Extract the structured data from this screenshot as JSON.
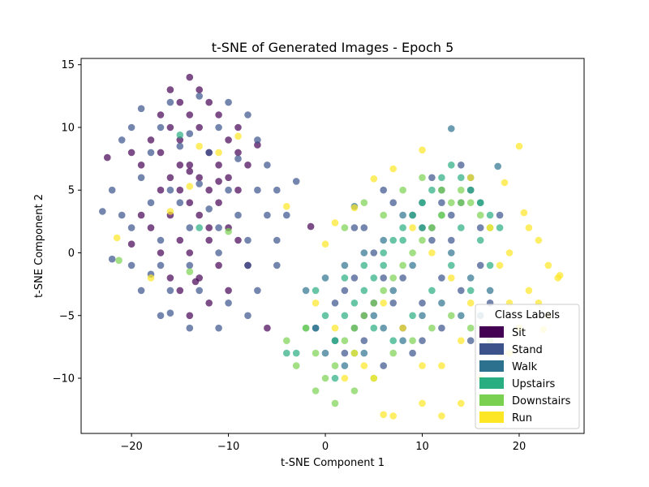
{
  "chart_data": {
    "type": "scatter",
    "title": "t-SNE of Generated Images - Epoch 5",
    "xlabel": "t-SNE Component 1",
    "ylabel": "t-SNE Component 2",
    "xlim": [
      -25.2,
      26.7
    ],
    "ylim": [
      -14.4,
      15.5
    ],
    "xticks": [
      -20,
      -10,
      0,
      10,
      20
    ],
    "yticks": [
      -10,
      -5,
      0,
      5,
      10,
      15
    ],
    "grid": false,
    "legend": {
      "title": "Class Labels",
      "placement": "lower-right"
    },
    "series": [
      {
        "name": "Sit",
        "color": "#440154",
        "points": [
          [
            -14,
            14
          ],
          [
            -16,
            13
          ],
          [
            -13,
            13
          ],
          [
            -15,
            12
          ],
          [
            -12,
            12
          ],
          [
            -17,
            11
          ],
          [
            -14,
            11
          ],
          [
            -11,
            11
          ],
          [
            -9,
            10
          ],
          [
            -16,
            10
          ],
          [
            -13,
            10
          ],
          [
            -10,
            9
          ],
          [
            -18,
            9
          ],
          [
            -15,
            9
          ],
          [
            -12,
            8
          ],
          [
            -9,
            8
          ],
          [
            -20,
            8
          ],
          [
            -17,
            8
          ],
          [
            -14,
            7
          ],
          [
            -11,
            7
          ],
          [
            -8,
            7
          ],
          [
            -19,
            7
          ],
          [
            -16,
            6
          ],
          [
            -13,
            6
          ],
          [
            -10,
            6
          ],
          [
            -15,
            5
          ],
          [
            -12,
            5
          ],
          [
            -9,
            5
          ],
          [
            -17,
            5
          ],
          [
            -14,
            4
          ],
          [
            -11,
            4
          ],
          [
            -19,
            3
          ],
          [
            -16,
            3
          ],
          [
            -13,
            3
          ],
          [
            -10,
            2
          ],
          [
            -18,
            2
          ],
          [
            -15,
            1
          ],
          [
            -12,
            1
          ],
          [
            -9,
            1
          ],
          [
            -17,
            0
          ],
          [
            -14,
            0
          ],
          [
            -11,
            -1
          ],
          [
            -8,
            -1
          ],
          [
            -16,
            -2
          ],
          [
            -13,
            -2
          ],
          [
            -10,
            -3
          ],
          [
            -15,
            -3
          ],
          [
            -12,
            -4
          ],
          [
            -14,
            -5
          ],
          [
            -22.5,
            7.6
          ],
          [
            -7,
            8.6
          ],
          [
            -13.4,
            -2.3
          ],
          [
            -1.5,
            2.1
          ],
          [
            -6,
            -6
          ],
          [
            -11,
            5.7
          ],
          [
            -14,
            6.5
          ],
          [
            -12,
            2
          ],
          [
            -15,
            7
          ],
          [
            -20,
            0.7
          ]
        ]
      },
      {
        "name": "Stand",
        "color": "#3b528b",
        "points": [
          [
            -19,
            11.5
          ],
          [
            -16,
            12
          ],
          [
            -13,
            12.5
          ],
          [
            -10,
            12
          ],
          [
            -8,
            11
          ],
          [
            -20,
            10
          ],
          [
            -17,
            10
          ],
          [
            -14,
            9.5
          ],
          [
            -11,
            10
          ],
          [
            -7,
            9
          ],
          [
            -21,
            9
          ],
          [
            -18,
            8
          ],
          [
            -15,
            8.5
          ],
          [
            -12,
            8
          ],
          [
            -9,
            7.5
          ],
          [
            -6,
            7
          ],
          [
            -22,
            5
          ],
          [
            -19,
            6
          ],
          [
            -16,
            5
          ],
          [
            -13,
            5.5
          ],
          [
            -10,
            5
          ],
          [
            -7,
            5
          ],
          [
            -5,
            5
          ],
          [
            -21,
            3
          ],
          [
            -18,
            4
          ],
          [
            -15,
            4
          ],
          [
            -12,
            3.5
          ],
          [
            -9,
            3
          ],
          [
            -6,
            3
          ],
          [
            -4,
            3
          ],
          [
            -20,
            2
          ],
          [
            -17,
            1
          ],
          [
            -14,
            2
          ],
          [
            -11,
            2
          ],
          [
            -8,
            1
          ],
          [
            -5,
            1
          ],
          [
            -20,
            -1
          ],
          [
            -17,
            -1
          ],
          [
            -14,
            -1
          ],
          [
            -11,
            0
          ],
          [
            -8,
            -1
          ],
          [
            -5,
            -1
          ],
          [
            -19,
            -3
          ],
          [
            -16,
            -3
          ],
          [
            -13,
            -3
          ],
          [
            -10,
            -4
          ],
          [
            -7,
            -3
          ],
          [
            -17,
            -5
          ],
          [
            -14,
            -6
          ],
          [
            -11,
            -6
          ],
          [
            -8,
            -5
          ],
          [
            -3,
            5.7
          ],
          [
            -23,
            3.3
          ],
          [
            -22,
            -0.5
          ],
          [
            -18,
            -1.7
          ],
          [
            -16,
            -4.8
          ],
          [
            3,
            2
          ],
          [
            5,
            0
          ],
          [
            8,
            -2
          ],
          [
            10,
            -4
          ],
          [
            12,
            -6
          ],
          [
            14,
            -3
          ],
          [
            16,
            -1
          ],
          [
            7,
            4
          ],
          [
            11,
            1
          ],
          [
            13,
            3
          ],
          [
            15,
            5
          ],
          [
            9,
            -8
          ],
          [
            6,
            -9
          ],
          [
            4,
            -5
          ],
          [
            2,
            -3
          ],
          [
            17,
            -4
          ],
          [
            18,
            3
          ],
          [
            14,
            7
          ],
          [
            11,
            6
          ],
          [
            9,
            3
          ],
          [
            6,
            5
          ],
          [
            4,
            2
          ],
          [
            8,
            -6
          ],
          [
            12,
            -2
          ],
          [
            15,
            -7
          ],
          [
            6,
            -2
          ],
          [
            10,
            -7
          ],
          [
            13,
            1
          ],
          [
            16,
            2
          ],
          [
            5,
            -4
          ],
          [
            7,
            -4
          ],
          [
            3,
            -2
          ],
          [
            1,
            -4
          ],
          [
            4,
            -7
          ],
          [
            2,
            -8
          ],
          [
            10,
            2
          ],
          [
            12,
            4
          ]
        ]
      },
      {
        "name": "Walk",
        "color": "#2c728e",
        "points": [
          [
            13,
            9.9
          ],
          [
            17.8,
            6.9
          ],
          [
            15,
            6
          ],
          [
            12,
            5
          ],
          [
            10,
            4
          ],
          [
            8,
            3
          ],
          [
            6,
            1
          ],
          [
            4,
            0
          ],
          [
            2,
            -1
          ],
          [
            0,
            -2
          ],
          [
            -2,
            -3
          ],
          [
            11,
            2
          ],
          [
            13,
            0
          ],
          [
            15,
            -2
          ],
          [
            17,
            -3
          ],
          [
            9,
            -1
          ],
          [
            7,
            -3
          ],
          [
            5,
            -5
          ],
          [
            3,
            -6
          ],
          [
            1,
            -7
          ],
          [
            14,
            4
          ],
          [
            16,
            4
          ],
          [
            12,
            -4
          ],
          [
            10,
            -5
          ],
          [
            8,
            -7
          ],
          [
            6,
            -6
          ],
          [
            4,
            -8
          ],
          [
            2,
            -9
          ],
          [
            0,
            -8
          ],
          [
            -1,
            -6
          ],
          [
            16,
            -5
          ],
          [
            14,
            -5
          ],
          [
            3,
            3.7
          ],
          [
            -1,
            -6
          ]
        ]
      },
      {
        "name": "Upstairs",
        "color": "#28ae80",
        "points": [
          [
            -1,
            -3
          ],
          [
            0,
            -5
          ],
          [
            -2,
            -6
          ],
          [
            -3,
            -8
          ],
          [
            1,
            -7
          ],
          [
            2,
            -5
          ],
          [
            3,
            -4
          ],
          [
            4,
            -3
          ],
          [
            5,
            -2
          ],
          [
            6,
            -1
          ],
          [
            7,
            1
          ],
          [
            8,
            2
          ],
          [
            9,
            3
          ],
          [
            10,
            4
          ],
          [
            11,
            5
          ],
          [
            12,
            6
          ],
          [
            13,
            7
          ],
          [
            14,
            6
          ],
          [
            15,
            5
          ],
          [
            16,
            4
          ],
          [
            17,
            3
          ],
          [
            18,
            2
          ],
          [
            2,
            -2
          ],
          [
            4,
            -1
          ],
          [
            6,
            0
          ],
          [
            8,
            1
          ],
          [
            10,
            2
          ],
          [
            12,
            3
          ],
          [
            14,
            2
          ],
          [
            16,
            1
          ],
          [
            -15,
            9.4
          ],
          [
            -13,
            2
          ],
          [
            -4,
            -8
          ],
          [
            1,
            -10
          ],
          [
            3,
            -8
          ],
          [
            5,
            -6
          ],
          [
            7,
            -7
          ],
          [
            9,
            -5
          ],
          [
            11,
            -3
          ],
          [
            13,
            -1
          ],
          [
            15,
            -3
          ],
          [
            17,
            -1
          ]
        ]
      },
      {
        "name": "Downstairs",
        "color": "#7ad151",
        "points": [
          [
            -2,
            -6
          ],
          [
            -4,
            -7
          ],
          [
            -3,
            -9
          ],
          [
            -1,
            -8
          ],
          [
            0,
            -10
          ],
          [
            1,
            -9
          ],
          [
            2,
            -7
          ],
          [
            3,
            -6
          ],
          [
            4,
            -5
          ],
          [
            5,
            -4
          ],
          [
            6,
            -3
          ],
          [
            7,
            -2
          ],
          [
            8,
            -1
          ],
          [
            9,
            0
          ],
          [
            10,
            1
          ],
          [
            11,
            2
          ],
          [
            12,
            3
          ],
          [
            13,
            4
          ],
          [
            14,
            5
          ],
          [
            15,
            4
          ],
          [
            16,
            3
          ],
          [
            17,
            2
          ],
          [
            -1,
            -11
          ],
          [
            1,
            -12
          ],
          [
            3,
            -11
          ],
          [
            5,
            -10
          ],
          [
            7,
            -8
          ],
          [
            9,
            -7
          ],
          [
            11,
            -6
          ],
          [
            13,
            -5
          ],
          [
            15,
            -6
          ],
          [
            17,
            -7
          ],
          [
            -21.3,
            -0.6
          ],
          [
            -14,
            -1.5
          ],
          [
            -10,
            1.7
          ],
          [
            2,
            2
          ],
          [
            4,
            4
          ],
          [
            6,
            3
          ],
          [
            8,
            5
          ],
          [
            10,
            6
          ],
          [
            12,
            5
          ],
          [
            14,
            4
          ]
        ]
      },
      {
        "name": "Run",
        "color": "#fde725",
        "points": [
          [
            10,
            8.2
          ],
          [
            20,
            8.5
          ],
          [
            18.5,
            5.6
          ],
          [
            20.5,
            3.2
          ],
          [
            22,
            1
          ],
          [
            23,
            -1
          ],
          [
            24,
            -2
          ],
          [
            22,
            -4
          ],
          [
            20,
            -6
          ],
          [
            18,
            -8
          ],
          [
            16,
            -10
          ],
          [
            14,
            -12
          ],
          [
            12,
            -13
          ],
          [
            10,
            -12
          ],
          [
            7,
            -13
          ],
          [
            5,
            -10
          ],
          [
            3,
            -8
          ],
          [
            1,
            -6
          ],
          [
            -1,
            -4
          ],
          [
            0,
            0.7
          ],
          [
            1,
            2.4
          ],
          [
            3,
            3.6
          ],
          [
            5,
            5.9
          ],
          [
            7,
            6.7
          ],
          [
            9,
            2
          ],
          [
            11,
            0
          ],
          [
            13,
            -2
          ],
          [
            15,
            -4
          ],
          [
            17,
            -6
          ],
          [
            19,
            -8
          ],
          [
            21,
            -3
          ],
          [
            23,
            -5
          ],
          [
            19,
            -4
          ],
          [
            17,
            2
          ],
          [
            15,
            6
          ],
          [
            21,
            2
          ],
          [
            19,
            0
          ],
          [
            18,
            -1
          ],
          [
            6,
            -4
          ],
          [
            8,
            -6
          ],
          [
            10,
            -9
          ],
          [
            12,
            -9
          ],
          [
            14,
            -7
          ],
          [
            4,
            -9
          ],
          [
            2,
            -10
          ],
          [
            -14,
            5.3
          ],
          [
            -16,
            3.3
          ],
          [
            -18,
            -2
          ],
          [
            -21.5,
            1.2
          ],
          [
            -13,
            8.5
          ],
          [
            -11,
            8
          ],
          [
            -9,
            9.3
          ],
          [
            -4,
            3.7
          ],
          [
            24.2,
            -1.8
          ],
          [
            22.5,
            -6.1
          ],
          [
            6,
            -12.9
          ]
        ]
      }
    ]
  }
}
